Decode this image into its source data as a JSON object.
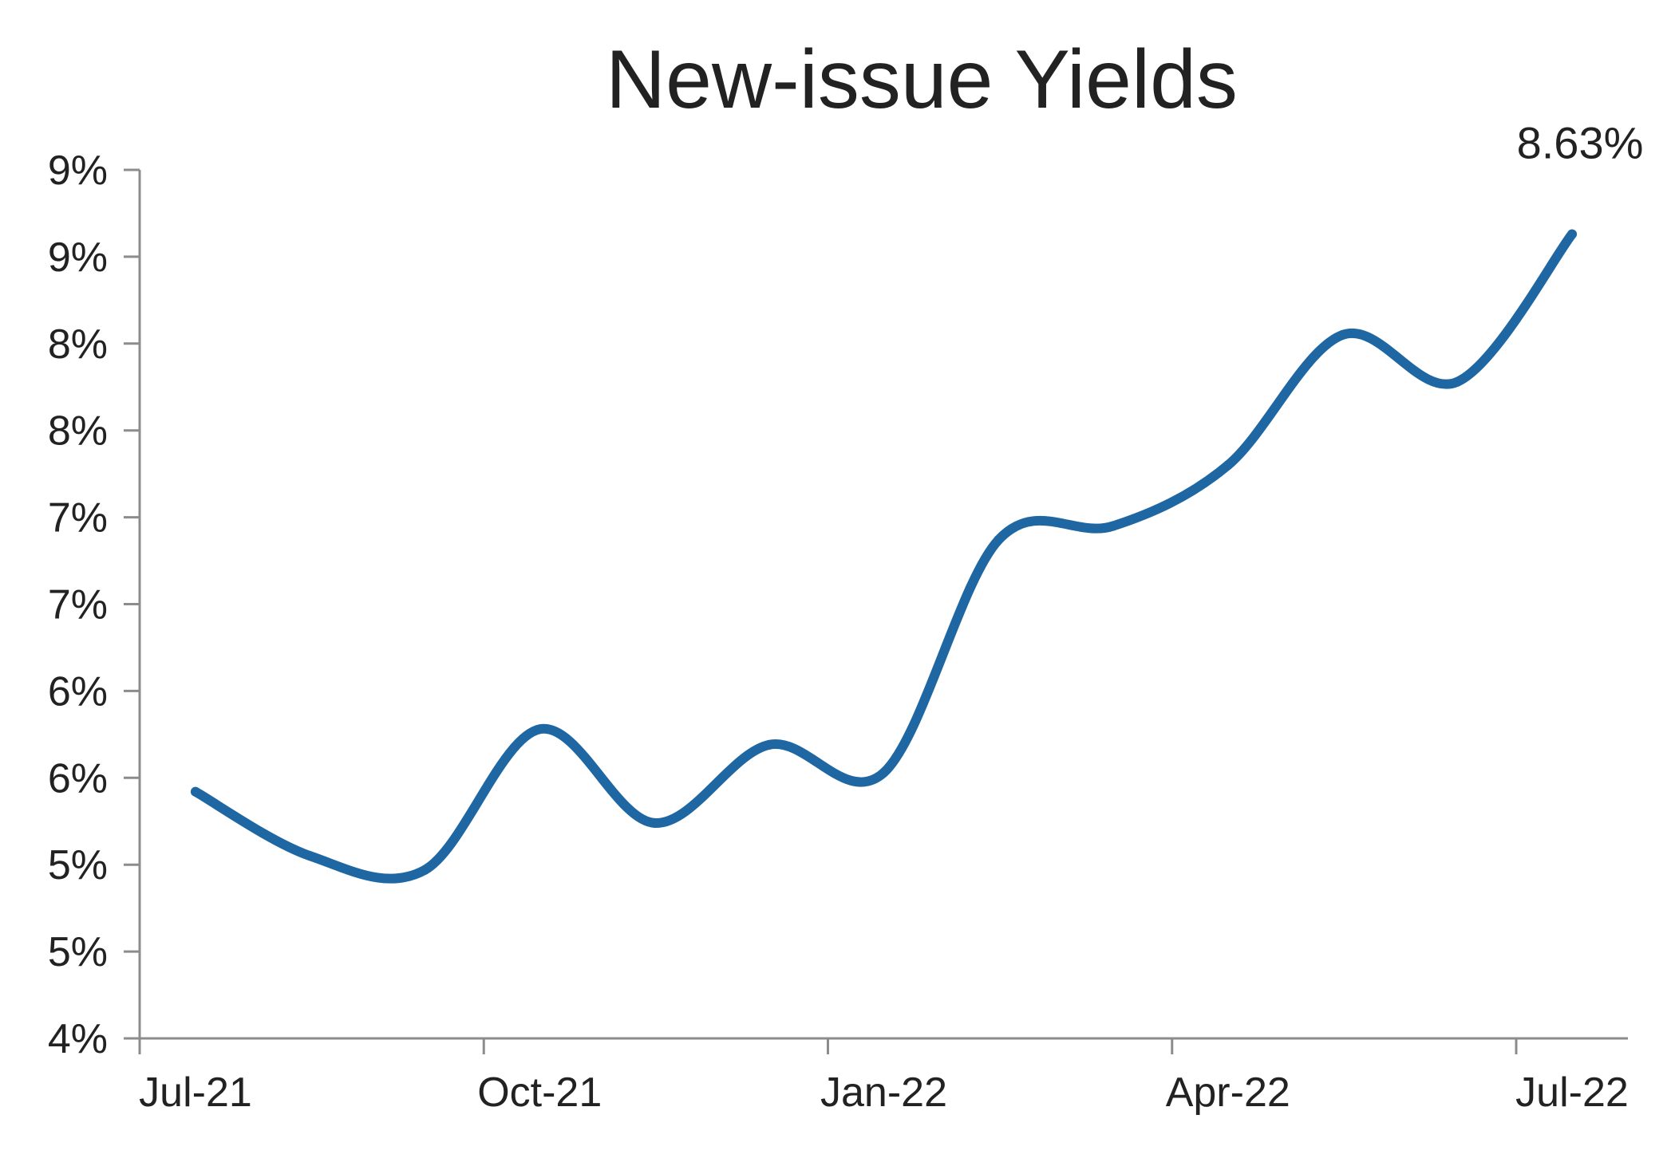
{
  "chart_data": {
    "type": "line",
    "title": "New-issue Yields",
    "xlabel": "",
    "ylabel": "",
    "x_tick_labels": [
      "Jul-21",
      "Oct-21",
      "Jan-22",
      "Apr-22",
      "Jul-22"
    ],
    "y_tick_labels": [
      "4%",
      "5%",
      "5%",
      "6%",
      "6%",
      "7%",
      "7%",
      "8%",
      "8%",
      "9%",
      "9%"
    ],
    "ylim": [
      4.0,
      9.0
    ],
    "grid": false,
    "legend": "none",
    "series": [
      {
        "color": "#1f67a3",
        "x": [
          "2021-07",
          "2021-08",
          "2021-09",
          "2021-10",
          "2021-11",
          "2021-12",
          "2022-01",
          "2022-02",
          "2022-03",
          "2022-04",
          "2022-05",
          "2022-06",
          "2022-07"
        ],
        "values": [
          5.42,
          5.05,
          4.97,
          5.78,
          5.24,
          5.69,
          5.53,
          6.87,
          6.95,
          7.3,
          8.05,
          7.78,
          8.63
        ]
      }
    ],
    "annotations": [
      {
        "text": "8.63%",
        "x": "2022-07",
        "y": 8.63
      }
    ]
  }
}
